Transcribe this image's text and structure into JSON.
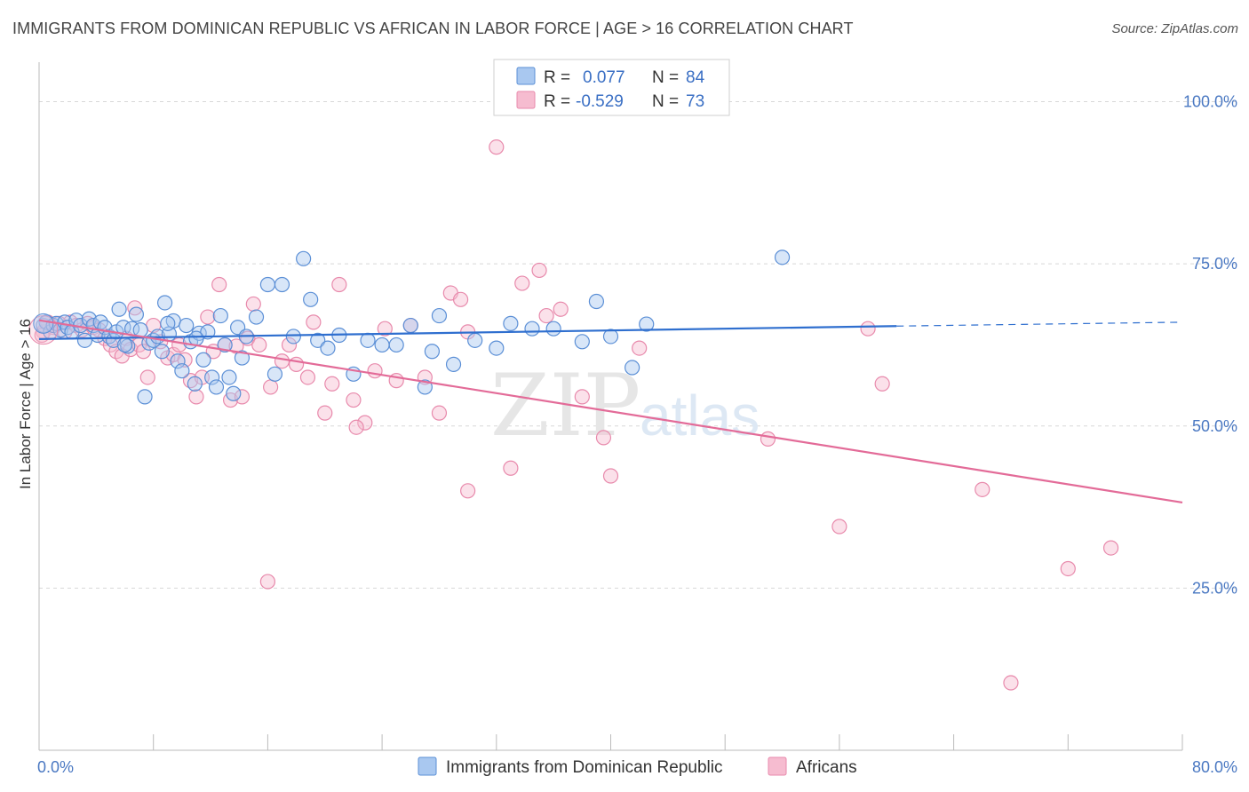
{
  "title": "IMMIGRANTS FROM DOMINICAN REPUBLIC VS AFRICAN IN LABOR FORCE | AGE > 16 CORRELATION CHART",
  "source": "Source: ZipAtlas.com",
  "watermark": {
    "zip": "ZIP",
    "atlas": "atlas"
  },
  "colors": {
    "blue_fill": "#a9c8f0",
    "blue_stroke": "#5b8fd6",
    "blue_line": "#2f6fcf",
    "pink_fill": "#f6bcd0",
    "pink_stroke": "#e88aac",
    "pink_line": "#e36b98",
    "grid": "#d8d8d8",
    "tick_text": "#4a78c2"
  },
  "legend": {
    "r_label": "R =",
    "n_label": "N =",
    "rows": [
      {
        "r": "0.077",
        "n": "84",
        "color": "blue"
      },
      {
        "r": "-0.529",
        "n": "73",
        "color": "pink"
      }
    ]
  },
  "chart_data": {
    "type": "scatter",
    "ylabel": "In Labor Force | Age > 16",
    "xlim": [
      0,
      80
    ],
    "ylim": [
      0,
      105
    ],
    "x_tick_labels": [
      {
        "v": 0,
        "label": "0.0%"
      },
      {
        "v": 80,
        "label": "80.0%"
      }
    ],
    "y_tick_labels": [
      {
        "v": 100,
        "label": "100.0%"
      },
      {
        "v": 75,
        "label": "75.0%"
      },
      {
        "v": 50,
        "label": "50.0%"
      },
      {
        "v": 25,
        "label": "25.0%"
      }
    ],
    "x_minor_ticks": [
      0,
      8,
      16,
      24,
      32,
      40,
      48,
      56,
      64,
      72,
      80
    ],
    "y_gridlines": [
      100,
      75,
      50,
      25
    ],
    "series": [
      {
        "name": "Immigrants from Dominican Republic",
        "color": "blue",
        "trend": {
          "x0": 0,
          "y0": 63.4,
          "x1": 60,
          "y1": 65.4,
          "dash_to_x": 80,
          "dash_to_y": 66.0
        },
        "points": [
          [
            0.3,
            65.5
          ],
          [
            0.5,
            66
          ],
          [
            0.8,
            64.5
          ],
          [
            1.0,
            65.5
          ],
          [
            1.2,
            65.8
          ],
          [
            1.5,
            64.8
          ],
          [
            1.8,
            66
          ],
          [
            2.0,
            65.2
          ],
          [
            2.3,
            64.5
          ],
          [
            2.6,
            66.3
          ],
          [
            2.9,
            65.5
          ],
          [
            3.2,
            63.2
          ],
          [
            3.5,
            66.5
          ],
          [
            3.8,
            65.5
          ],
          [
            4.1,
            64
          ],
          [
            4.3,
            66
          ],
          [
            4.6,
            65.2
          ],
          [
            4.9,
            63.8
          ],
          [
            5.2,
            63.2
          ],
          [
            5.4,
            64.5
          ],
          [
            5.6,
            68
          ],
          [
            5.9,
            65.2
          ],
          [
            6.2,
            62.3
          ],
          [
            6.5,
            65
          ],
          [
            6.8,
            67.2
          ],
          [
            7.1,
            64.8
          ],
          [
            7.4,
            54.5
          ],
          [
            7.7,
            62.8
          ],
          [
            8.0,
            63.2
          ],
          [
            8.3,
            63.8
          ],
          [
            8.6,
            61.5
          ],
          [
            8.8,
            69
          ],
          [
            9.1,
            64.2
          ],
          [
            9.4,
            66.2
          ],
          [
            9.7,
            60
          ],
          [
            10.0,
            58.5
          ],
          [
            10.3,
            65.5
          ],
          [
            10.6,
            63
          ],
          [
            10.9,
            56.5
          ],
          [
            11.2,
            64.3
          ],
          [
            11.5,
            60.2
          ],
          [
            11.8,
            64.5
          ],
          [
            12.1,
            57.5
          ],
          [
            12.4,
            56
          ],
          [
            12.7,
            67
          ],
          [
            13.0,
            62.5
          ],
          [
            13.3,
            57.5
          ],
          [
            13.6,
            55
          ],
          [
            13.9,
            65.2
          ],
          [
            14.2,
            60.5
          ],
          [
            14.5,
            63.8
          ],
          [
            15.2,
            66.8
          ],
          [
            16.0,
            71.8
          ],
          [
            16.5,
            58
          ],
          [
            17.0,
            71.8
          ],
          [
            17.8,
            63.8
          ],
          [
            18.5,
            75.8
          ],
          [
            19.0,
            69.5
          ],
          [
            19.5,
            63.2
          ],
          [
            20.2,
            62
          ],
          [
            21.0,
            64
          ],
          [
            22.0,
            58
          ],
          [
            23.0,
            63.2
          ],
          [
            24.0,
            62.5
          ],
          [
            25.0,
            62.5
          ],
          [
            26.0,
            65.5
          ],
          [
            27.0,
            56
          ],
          [
            27.5,
            61.5
          ],
          [
            28.0,
            67
          ],
          [
            29.0,
            59.5
          ],
          [
            30.5,
            63.2
          ],
          [
            32.0,
            62
          ],
          [
            33.0,
            65.8
          ],
          [
            34.5,
            65
          ],
          [
            36.0,
            65
          ],
          [
            38.0,
            63
          ],
          [
            39.0,
            69.2
          ],
          [
            40.0,
            63.8
          ],
          [
            41.5,
            59
          ],
          [
            42.5,
            65.7
          ],
          [
            52.0,
            76
          ],
          [
            11.0,
            63.5
          ],
          [
            6.0,
            62.5
          ],
          [
            9.0,
            65.8
          ]
        ]
      },
      {
        "name": "Africans",
        "color": "pink",
        "trend": {
          "x0": 0,
          "y0": 66.3,
          "x1": 80,
          "y1": 38.2
        },
        "points": [
          [
            0.3,
            64.5
          ],
          [
            0.6,
            66
          ],
          [
            1.0,
            65.2
          ],
          [
            1.4,
            65.8
          ],
          [
            1.8,
            64.5
          ],
          [
            2.2,
            66
          ],
          [
            2.6,
            65.5
          ],
          [
            3.0,
            64.8
          ],
          [
            3.4,
            65.8
          ],
          [
            3.8,
            65.2
          ],
          [
            4.2,
            64.8
          ],
          [
            4.6,
            63.5
          ],
          [
            5.0,
            62.5
          ],
          [
            5.4,
            61.5
          ],
          [
            5.8,
            60.8
          ],
          [
            6.1,
            63.5
          ],
          [
            6.4,
            61.8
          ],
          [
            6.7,
            68.2
          ],
          [
            7.0,
            62.5
          ],
          [
            7.3,
            61.5
          ],
          [
            7.6,
            57.5
          ],
          [
            8.0,
            65.5
          ],
          [
            8.5,
            63
          ],
          [
            9.0,
            60.5
          ],
          [
            9.4,
            61
          ],
          [
            9.8,
            62.5
          ],
          [
            10.2,
            60.2
          ],
          [
            10.6,
            57
          ],
          [
            11.0,
            54.5
          ],
          [
            11.4,
            57.5
          ],
          [
            11.8,
            66.8
          ],
          [
            12.2,
            61.5
          ],
          [
            12.6,
            71.8
          ],
          [
            13.0,
            62.5
          ],
          [
            13.4,
            54
          ],
          [
            13.8,
            62.3
          ],
          [
            14.2,
            54.5
          ],
          [
            14.6,
            63.5
          ],
          [
            15.0,
            68.8
          ],
          [
            15.4,
            62.5
          ],
          [
            16.2,
            56
          ],
          [
            17.0,
            60
          ],
          [
            17.5,
            62.5
          ],
          [
            18.0,
            59.5
          ],
          [
            18.8,
            57.5
          ],
          [
            19.2,
            66
          ],
          [
            20.0,
            52
          ],
          [
            20.5,
            56.5
          ],
          [
            21.0,
            71.8
          ],
          [
            22.0,
            54
          ],
          [
            22.8,
            50.5
          ],
          [
            22.2,
            49.8
          ],
          [
            23.5,
            58.5
          ],
          [
            24.2,
            65
          ],
          [
            25.0,
            57
          ],
          [
            26.0,
            65.5
          ],
          [
            27.0,
            57.5
          ],
          [
            28.0,
            52
          ],
          [
            28.8,
            70.5
          ],
          [
            29.5,
            69.5
          ],
          [
            30.0,
            64.5
          ],
          [
            32.0,
            93
          ],
          [
            33.0,
            43.5
          ],
          [
            33.8,
            72
          ],
          [
            35.0,
            74
          ],
          [
            35.5,
            67
          ],
          [
            36.5,
            68
          ],
          [
            38.0,
            54.5
          ],
          [
            39.5,
            48.2
          ],
          [
            40.0,
            42.3
          ],
          [
            42.0,
            62
          ],
          [
            51.0,
            48
          ],
          [
            56.0,
            34.5
          ]
        ]
      }
    ],
    "extra_pink_points": [
      [
        58.0,
        65
      ],
      [
        59.0,
        56.5
      ],
      [
        66.0,
        40.2
      ],
      [
        72.0,
        28
      ],
      [
        75.0,
        31.2
      ],
      [
        68.0,
        10.4
      ],
      [
        16.0,
        26
      ],
      [
        30.0,
        40
      ],
      [
        0.2,
        64
      ]
    ]
  },
  "bottom_legend": [
    {
      "label": "Immigrants from Dominican Republic",
      "color": "blue"
    },
    {
      "label": "Africans",
      "color": "pink"
    }
  ]
}
